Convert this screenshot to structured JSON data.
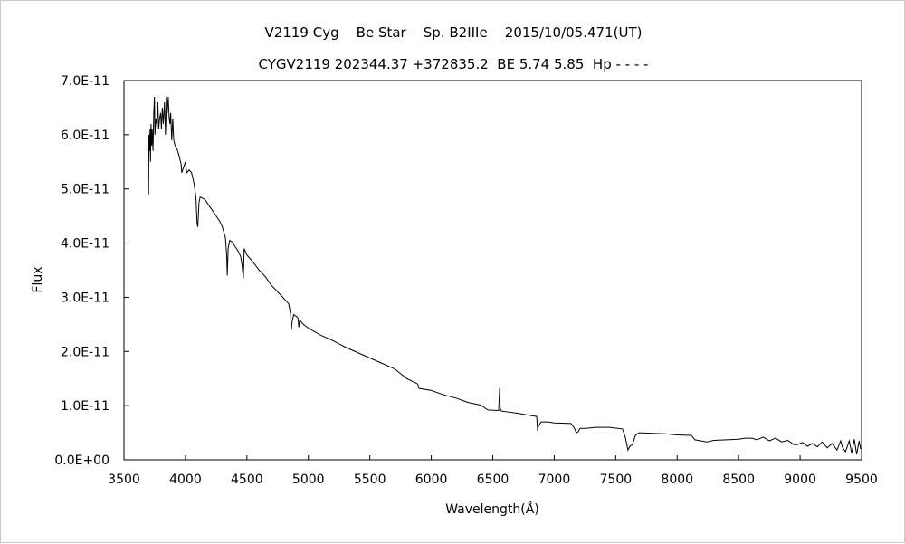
{
  "chart_data": {
    "type": "line",
    "title": "V2119 Cyg    Be Star    Sp. B2IIIe    2015/10/05.471(UT)",
    "subtitle": "CYGV2119 202344.37 +372835.2  BE 5.74 5.85  Hp - - - -",
    "xlabel": "Wavelength(Å)",
    "ylabel": "Flux",
    "xlim": [
      3500,
      9500
    ],
    "ylim": [
      0,
      7e-11
    ],
    "y_unit_scale": 1e-11,
    "xticks": [
      3500,
      4000,
      4500,
      5000,
      5500,
      6000,
      6500,
      7000,
      7500,
      8000,
      8500,
      9000,
      9500
    ],
    "xtick_labels": [
      "3500",
      "4000",
      "4500",
      "5000",
      "5500",
      "6000",
      "6500",
      "7000",
      "7500",
      "8000",
      "8500",
      "9000",
      "9500"
    ],
    "yticks": [
      0,
      1,
      2,
      3,
      4,
      5,
      6,
      7
    ],
    "ytick_labels": [
      "0.0E+00",
      "1.0E-11",
      "2.0E-11",
      "3.0E-11",
      "4.0E-11",
      "5.0E-11",
      "6.0E-11",
      "7.0E-11"
    ],
    "grid": false,
    "series": [
      {
        "name": "Flux",
        "color": "#000000",
        "points": [
          [
            3700,
            4.9
          ],
          [
            3703,
            6.0
          ],
          [
            3708,
            5.7
          ],
          [
            3712,
            6.1
          ],
          [
            3716,
            5.5
          ],
          [
            3720,
            6.2
          ],
          [
            3725,
            5.8
          ],
          [
            3730,
            6.1
          ],
          [
            3736,
            5.7
          ],
          [
            3742,
            6.4
          ],
          [
            3748,
            6.7
          ],
          [
            3752,
            6.0
          ],
          [
            3760,
            6.3
          ],
          [
            3768,
            6.2
          ],
          [
            3775,
            6.6
          ],
          [
            3782,
            6.1
          ],
          [
            3790,
            6.3
          ],
          [
            3798,
            6.4
          ],
          [
            3805,
            6.1
          ],
          [
            3812,
            6.5
          ],
          [
            3820,
            6.2
          ],
          [
            3830,
            6.6
          ],
          [
            3838,
            6.0
          ],
          [
            3845,
            6.7
          ],
          [
            3852,
            6.4
          ],
          [
            3860,
            6.7
          ],
          [
            3868,
            6.3
          ],
          [
            3874,
            6.2
          ],
          [
            3880,
            6.4
          ],
          [
            3889,
            5.9
          ],
          [
            3897,
            6.3
          ],
          [
            3905,
            5.9
          ],
          [
            3915,
            5.8
          ],
          [
            3930,
            5.75
          ],
          [
            3950,
            5.6
          ],
          [
            3965,
            5.45
          ],
          [
            3970,
            5.3
          ],
          [
            3985,
            5.4
          ],
          [
            4000,
            5.5
          ],
          [
            4010,
            5.3
          ],
          [
            4030,
            5.35
          ],
          [
            4050,
            5.3
          ],
          [
            4070,
            5.1
          ],
          [
            4085,
            4.85
          ],
          [
            4095,
            4.35
          ],
          [
            4101,
            4.3
          ],
          [
            4110,
            4.75
          ],
          [
            4120,
            4.85
          ],
          [
            4140,
            4.83
          ],
          [
            4160,
            4.8
          ],
          [
            4190,
            4.7
          ],
          [
            4220,
            4.6
          ],
          [
            4250,
            4.5
          ],
          [
            4280,
            4.4
          ],
          [
            4300,
            4.3
          ],
          [
            4325,
            4.1
          ],
          [
            4336,
            3.75
          ],
          [
            4340,
            3.4
          ],
          [
            4347,
            3.9
          ],
          [
            4360,
            4.05
          ],
          [
            4380,
            4.02
          ],
          [
            4400,
            3.95
          ],
          [
            4430,
            3.85
          ],
          [
            4450,
            3.75
          ],
          [
            4460,
            3.6
          ],
          [
            4471,
            3.35
          ],
          [
            4478,
            3.9
          ],
          [
            4500,
            3.78
          ],
          [
            4550,
            3.65
          ],
          [
            4600,
            3.5
          ],
          [
            4650,
            3.38
          ],
          [
            4700,
            3.22
          ],
          [
            4750,
            3.1
          ],
          [
            4800,
            2.98
          ],
          [
            4840,
            2.88
          ],
          [
            4855,
            2.7
          ],
          [
            4861,
            2.4
          ],
          [
            4868,
            2.55
          ],
          [
            4880,
            2.68
          ],
          [
            4900,
            2.65
          ],
          [
            4915,
            2.62
          ],
          [
            4922,
            2.45
          ],
          [
            4930,
            2.58
          ],
          [
            4960,
            2.5
          ],
          [
            5000,
            2.43
          ],
          [
            5100,
            2.3
          ],
          [
            5200,
            2.2
          ],
          [
            5300,
            2.08
          ],
          [
            5400,
            1.98
          ],
          [
            5500,
            1.88
          ],
          [
            5600,
            1.78
          ],
          [
            5700,
            1.68
          ],
          [
            5800,
            1.5
          ],
          [
            5890,
            1.4
          ],
          [
            5900,
            1.32
          ],
          [
            6000,
            1.28
          ],
          [
            6100,
            1.2
          ],
          [
            6200,
            1.14
          ],
          [
            6300,
            1.06
          ],
          [
            6400,
            1.01
          ],
          [
            6460,
            0.92
          ],
          [
            6548,
            0.91
          ],
          [
            6556,
            1.32
          ],
          [
            6560,
            0.95
          ],
          [
            6570,
            0.9
          ],
          [
            6700,
            0.86
          ],
          [
            6800,
            0.82
          ],
          [
            6857,
            0.8
          ],
          [
            6865,
            0.53
          ],
          [
            6870,
            0.62
          ],
          [
            6894,
            0.7
          ],
          [
            6950,
            0.7
          ],
          [
            7000,
            0.68
          ],
          [
            7137,
            0.67
          ],
          [
            7160,
            0.6
          ],
          [
            7181,
            0.5
          ],
          [
            7195,
            0.52
          ],
          [
            7210,
            0.58
          ],
          [
            7260,
            0.58
          ],
          [
            7335,
            0.6
          ],
          [
            7450,
            0.6
          ],
          [
            7556,
            0.57
          ],
          [
            7580,
            0.4
          ],
          [
            7600,
            0.18
          ],
          [
            7615,
            0.25
          ],
          [
            7637,
            0.28
          ],
          [
            7660,
            0.45
          ],
          [
            7689,
            0.5
          ],
          [
            7800,
            0.49
          ],
          [
            7900,
            0.48
          ],
          [
            8000,
            0.46
          ],
          [
            8116,
            0.45
          ],
          [
            8145,
            0.37
          ],
          [
            8241,
            0.33
          ],
          [
            8300,
            0.36
          ],
          [
            8400,
            0.37
          ],
          [
            8500,
            0.38
          ],
          [
            8550,
            0.4
          ],
          [
            8609,
            0.4
          ],
          [
            8650,
            0.37
          ],
          [
            8700,
            0.42
          ],
          [
            8750,
            0.35
          ],
          [
            8800,
            0.4
          ],
          [
            8850,
            0.33
          ],
          [
            8900,
            0.36
          ],
          [
            8950,
            0.28
          ],
          [
            8977,
            0.28
          ],
          [
            9020,
            0.32
          ],
          [
            9060,
            0.25
          ],
          [
            9100,
            0.3
          ],
          [
            9140,
            0.24
          ],
          [
            9180,
            0.33
          ],
          [
            9220,
            0.22
          ],
          [
            9260,
            0.3
          ],
          [
            9300,
            0.18
          ],
          [
            9330,
            0.35
          ],
          [
            9345,
            0.23
          ],
          [
            9370,
            0.15
          ],
          [
            9400,
            0.35
          ],
          [
            9420,
            0.12
          ],
          [
            9440,
            0.38
          ],
          [
            9460,
            0.1
          ],
          [
            9480,
            0.35
          ],
          [
            9493,
            0.2
          ]
        ]
      }
    ]
  }
}
